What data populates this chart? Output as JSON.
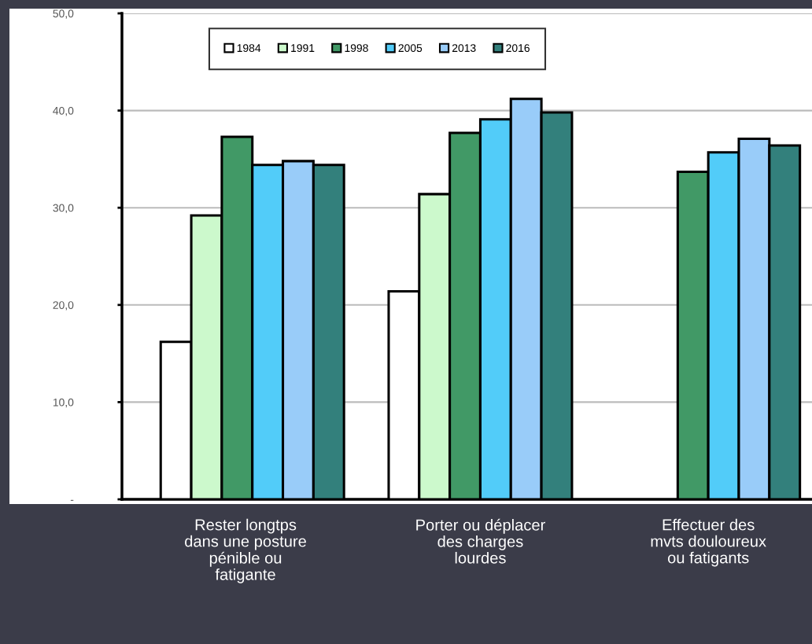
{
  "chart_data": {
    "type": "bar",
    "categories": [
      "Rester longtps\ndans une posture\npénible ou\nfatigante",
      "Porter ou déplacer\ndes charges\nlourdes",
      "Effectuer des\nmvts douloureux\nou fatigants"
    ],
    "series": [
      {
        "name": "1984",
        "color": "#ffffff",
        "values": [
          16.2,
          21.4,
          null
        ]
      },
      {
        "name": "1991",
        "color": "#ccf9cc",
        "values": [
          29.2,
          31.4,
          null
        ]
      },
      {
        "name": "1998",
        "color": "#419966",
        "values": [
          37.3,
          37.7,
          33.7
        ]
      },
      {
        "name": "2005",
        "color": "#52ccf9",
        "values": [
          34.4,
          39.1,
          35.7
        ]
      },
      {
        "name": "2013",
        "color": "#99ccf9",
        "values": [
          34.8,
          41.2,
          37.1
        ]
      },
      {
        "name": "2016",
        "color": "#33807c",
        "values": [
          34.4,
          39.8,
          36.4
        ]
      }
    ],
    "ylim": [
      0,
      50
    ],
    "yticks": [
      {
        "value": 0,
        "label": "-"
      },
      {
        "value": 10,
        "label": "10,0"
      },
      {
        "value": 20,
        "label": "20,0"
      },
      {
        "value": 30,
        "label": "30,0"
      },
      {
        "value": 40,
        "label": "40,0"
      },
      {
        "value": 50,
        "label": "50,0"
      }
    ],
    "grid": "y",
    "legend": "top"
  }
}
